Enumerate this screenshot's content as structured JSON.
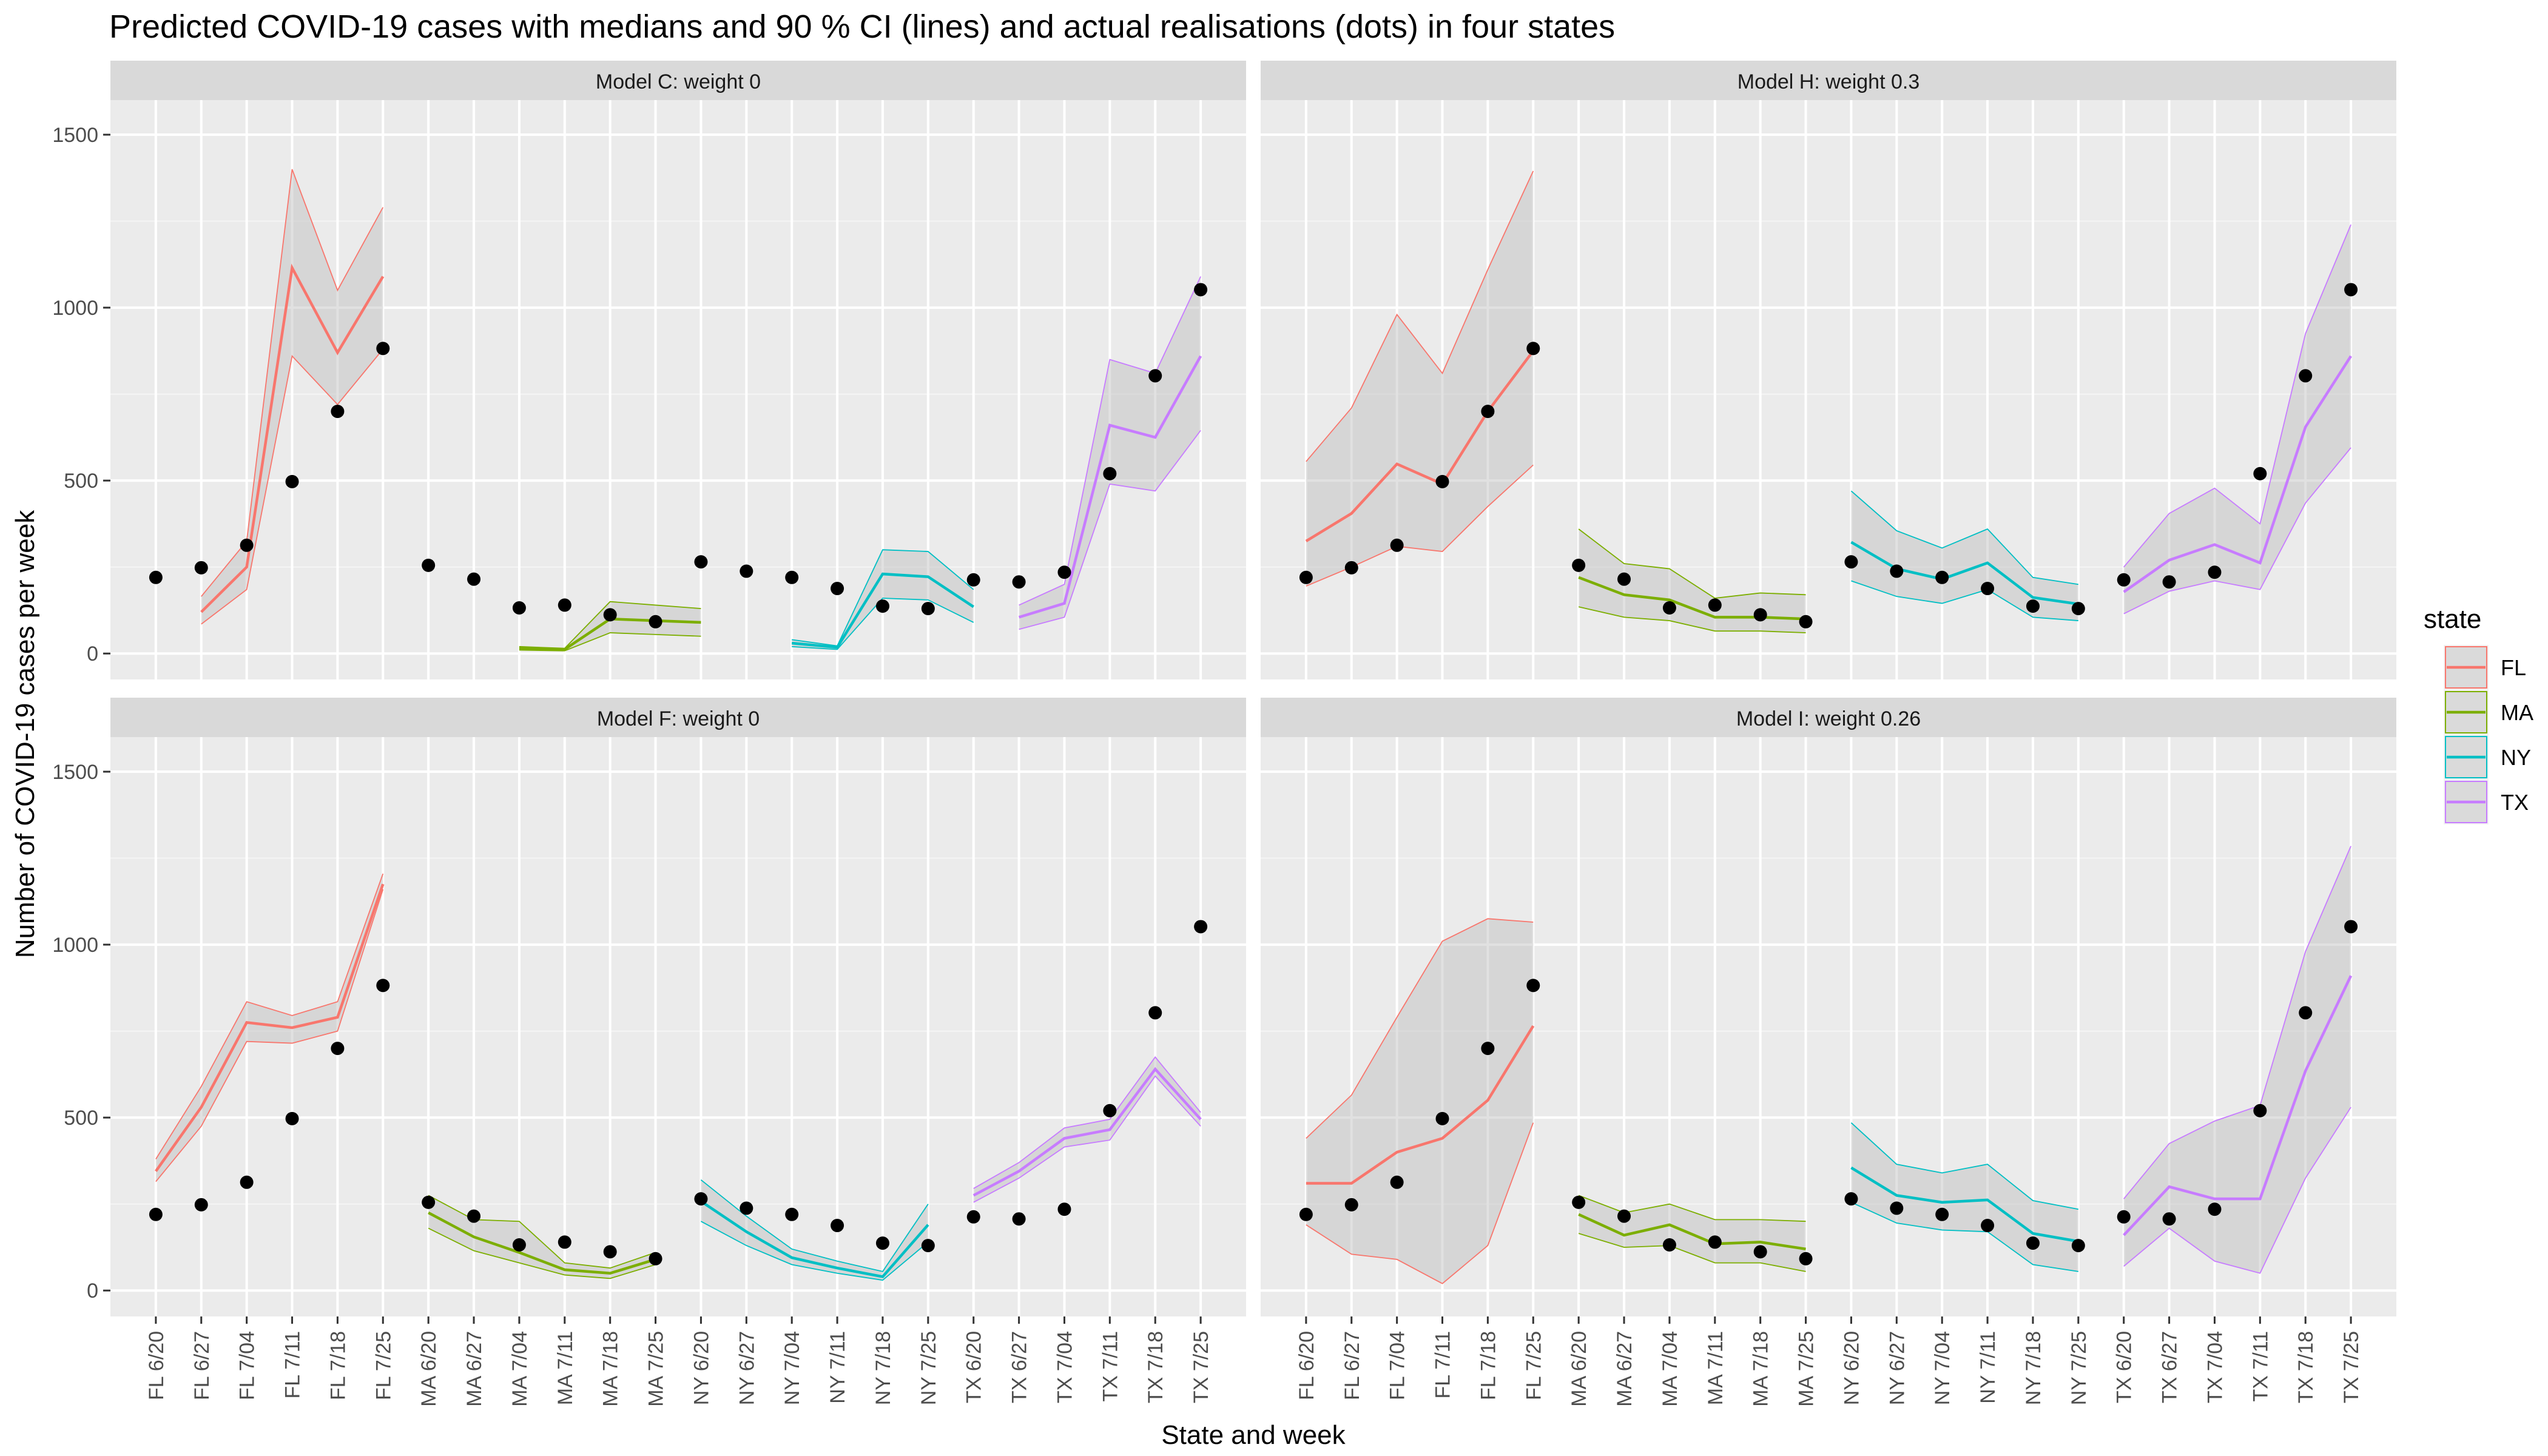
{
  "chart_data": {
    "type": "line",
    "title": "Predicted COVID-19 cases with medians and 90 % CI (lines) and actual realisations (dots) in four states",
    "xlabel": "State and week",
    "ylabel": "Number of COVID-19 cases per week",
    "ylim": [
      -75,
      1600
    ],
    "yticks": [
      0,
      500,
      1000,
      1500
    ],
    "grid": true,
    "legend": {
      "title": "state",
      "position": "right",
      "entries": [
        {
          "name": "FL",
          "color": "#F8766D"
        },
        {
          "name": "MA",
          "color": "#7CAE00"
        },
        {
          "name": "NY",
          "color": "#00BFC4"
        },
        {
          "name": "TX",
          "color": "#C77CFF"
        }
      ]
    },
    "categories": [
      "FL 6/20",
      "FL 6/27",
      "FL 7/04",
      "FL 7/11",
      "FL 7/18",
      "FL 7/25",
      "MA 6/20",
      "MA 6/27",
      "MA 7/04",
      "MA 7/11",
      "MA 7/18",
      "MA 7/25",
      "NY 6/20",
      "NY 6/27",
      "NY 7/04",
      "NY 7/11",
      "NY 7/18",
      "NY 7/25",
      "TX 6/20",
      "TX 6/27",
      "TX 7/04",
      "TX 7/11",
      "TX 7/18",
      "TX 7/25"
    ],
    "actual": {
      "FL": [
        220,
        248,
        313,
        497,
        700,
        882
      ],
      "MA": [
        255,
        215,
        132,
        140,
        112,
        92
      ],
      "NY": [
        265,
        238,
        220,
        188,
        137,
        130
      ],
      "TX": [
        213,
        207,
        235,
        520,
        803,
        1052
      ]
    },
    "panels": [
      {
        "title": "Model C: weight 0",
        "series": {
          "FL": {
            "start": 1,
            "median": [
              120,
              250,
              1115,
              870,
              1090
            ],
            "lower": [
              85,
              185,
              860,
              720,
              880
            ],
            "upper": [
              165,
              325,
              1400,
              1050,
              1290
            ]
          },
          "MA": {
            "start": 2,
            "median": [
              15,
              12,
              100,
              95,
              90
            ],
            "lower": [
              10,
              8,
              60,
              55,
              50
            ],
            "upper": [
              20,
              15,
              150,
              140,
              130
            ]
          },
          "NY": {
            "start": 2,
            "median": [
              30,
              18,
              230,
              222,
              135
            ],
            "lower": [
              20,
              12,
              160,
              155,
              90
            ],
            "upper": [
              40,
              22,
              300,
              295,
              185
            ]
          },
          "TX": {
            "start": 1,
            "median": [
              105,
              145,
              660,
              625,
              860
            ],
            "lower": [
              70,
              105,
              490,
              470,
              645
            ],
            "upper": [
              140,
              200,
              850,
              810,
              1090
            ]
          }
        }
      },
      {
        "title": "Model H: weight 0.3",
        "series": {
          "FL": {
            "start": 0,
            "median": [
              325,
              405,
              548,
              490,
              700,
              875
            ],
            "lower": [
              195,
              250,
              310,
              295,
              425,
              545
            ],
            "upper": [
              555,
              710,
              980,
              810,
              1110,
              1395
            ]
          },
          "MA": {
            "start": 0,
            "median": [
              220,
              170,
              155,
              105,
              105,
              100
            ],
            "lower": [
              135,
              105,
              95,
              65,
              65,
              60
            ],
            "upper": [
              360,
              260,
              245,
              160,
              175,
              170
            ]
          },
          "NY": {
            "start": 0,
            "median": [
              322,
              245,
              215,
              262,
              162,
              143
            ],
            "lower": [
              210,
              165,
              145,
              185,
              105,
              95
            ],
            "upper": [
              470,
              355,
              305,
              360,
              220,
              200
            ]
          },
          "TX": {
            "start": 0,
            "median": [
              178,
              270,
              315,
              262,
              655,
              860
            ],
            "lower": [
              115,
              180,
              210,
              185,
              435,
              595
            ],
            "upper": [
              250,
              405,
              478,
              375,
              925,
              1240
            ]
          }
        }
      },
      {
        "title": "Model F: weight 0",
        "series": {
          "FL": {
            "start": 0,
            "median": [
              345,
              530,
              775,
              760,
              790,
              1175
            ],
            "lower": [
              315,
              475,
              720,
              715,
              750,
              1160
            ],
            "upper": [
              380,
              590,
              835,
              795,
              835,
              1205
            ]
          },
          "MA": {
            "start": 0,
            "median": [
              225,
              155,
              110,
              60,
              50,
              90
            ],
            "lower": [
              180,
              115,
              80,
              45,
              35,
              75
            ],
            "upper": [
              275,
              205,
              200,
              80,
              65,
              110
            ]
          },
          "NY": {
            "start": 0,
            "median": [
              258,
              170,
              95,
              65,
              40,
              190
            ],
            "lower": [
              200,
              130,
              75,
              50,
              30,
              140
            ],
            "upper": [
              320,
              215,
              120,
              85,
              55,
              250
            ]
          },
          "TX": {
            "start": 0,
            "median": [
              275,
              345,
              440,
              465,
              640,
              495
            ],
            "lower": [
              255,
              325,
              415,
              435,
              620,
              475
            ],
            "upper": [
              295,
              370,
              470,
              495,
              675,
              515
            ]
          }
        }
      },
      {
        "title": "Model I: weight 0.26",
        "series": {
          "FL": {
            "start": 0,
            "median": [
              310,
              310,
              400,
              440,
              550,
              765
            ],
            "lower": [
              190,
              105,
              90,
              20,
              130,
              485
            ],
            "upper": [
              440,
              565,
              790,
              1010,
              1075,
              1065
            ]
          },
          "MA": {
            "start": 0,
            "median": [
              220,
              160,
              190,
              135,
              140,
              120
            ],
            "lower": [
              165,
              125,
              130,
              80,
              80,
              55
            ],
            "upper": [
              275,
              225,
              250,
              205,
              205,
              200
            ]
          },
          "NY": {
            "start": 0,
            "median": [
              355,
              275,
              255,
              262,
              165,
              142
            ],
            "lower": [
              255,
              195,
              175,
              170,
              75,
              55
            ],
            "upper": [
              485,
              365,
              340,
              365,
              260,
              235
            ]
          },
          "TX": {
            "start": 0,
            "median": [
              160,
              300,
              265,
              265,
              635,
              910
            ],
            "lower": [
              70,
              180,
              85,
              50,
              325,
              530
            ],
            "upper": [
              265,
              425,
              490,
              535,
              980,
              1285
            ]
          }
        }
      }
    ]
  }
}
